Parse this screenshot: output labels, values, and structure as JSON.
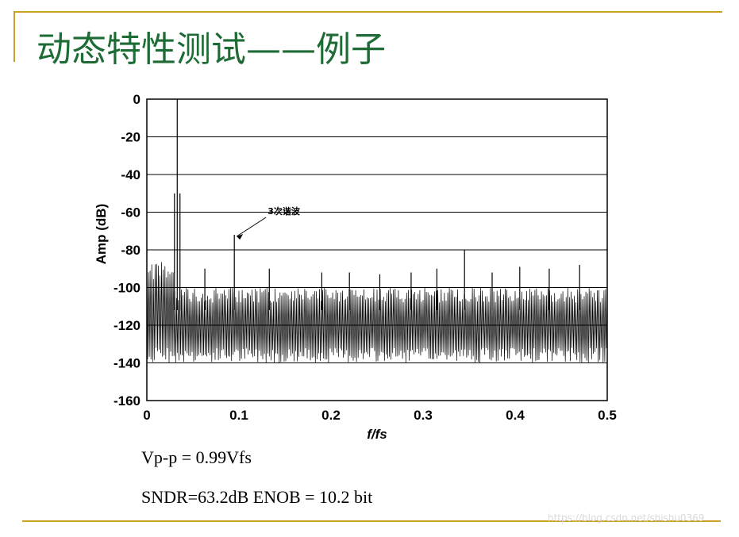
{
  "slide": {
    "title": "动态特性测试——例子",
    "info_line1": "Vp-p = 0.99Vfs",
    "info_line2": "SNDR=63.2dB  ENOB = 10.2 bit",
    "watermark": "https://blog.csdn.net/shishu0369"
  },
  "colors": {
    "title": "#1d6b35",
    "rule": "#c9a227",
    "trace": "#000000"
  },
  "chart_data": {
    "type": "line",
    "xlabel": "f/fs",
    "ylabel": "Amp (dB)",
    "xlim": [
      0,
      0.5
    ],
    "ylim": [
      -160,
      0
    ],
    "xticks": [
      0,
      0.1,
      0.2,
      0.3,
      0.4,
      0.5
    ],
    "xtick_labels": [
      "0",
      "0.1",
      "0.2",
      "0.3",
      "0.4",
      "0.5"
    ],
    "yticks": [
      0,
      -20,
      -40,
      -60,
      -80,
      -100,
      -120,
      -140,
      -160
    ],
    "ytick_labels": [
      "0",
      "-20",
      "-40",
      "-60",
      "-80",
      "-100",
      "-120",
      "-140",
      "-160"
    ],
    "grid": "horizontal",
    "annotation": {
      "text": "3次谐波",
      "x": 0.095,
      "y": -72
    },
    "noise_floor_range": [
      -140,
      -100
    ],
    "series": [
      {
        "x": [
          0.03,
          0.033,
          0.036,
          0.063,
          0.095,
          0.133,
          0.19,
          0.22,
          0.253,
          0.287,
          0.315,
          0.345,
          0.375,
          0.405,
          0.437,
          0.47
        ],
        "y": [
          -50,
          0,
          -50,
          -90,
          -72,
          -90,
          -92,
          -92,
          -93,
          -92,
          -90,
          -80,
          -92,
          -89,
          -90,
          -88
        ]
      }
    ]
  }
}
